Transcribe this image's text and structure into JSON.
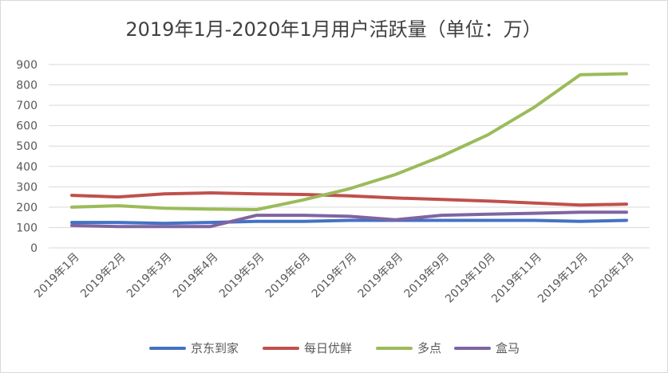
{
  "chart_data": {
    "type": "line",
    "title": "2019年1月-2020年1月用户活跃量（单位：万）",
    "xlabel": "",
    "ylabel": "",
    "categories": [
      "2019年1月",
      "2019年2月",
      "2019年3月",
      "2019年4月",
      "2019年5月",
      "2019年6月",
      "2019年7月",
      "2019年8月",
      "2019年9月",
      "2019年10月",
      "2019年11月",
      "2019年12月",
      "2020年1月"
    ],
    "ylim": [
      0,
      900
    ],
    "yticks": [
      0,
      100,
      200,
      300,
      400,
      500,
      600,
      700,
      800,
      900
    ],
    "grid": true,
    "legend_position": "bottom",
    "series": [
      {
        "name": "京东到家",
        "color": "#4472c4",
        "values": [
          125,
          125,
          120,
          125,
          130,
          130,
          135,
          135,
          135,
          135,
          135,
          130,
          135
        ]
      },
      {
        "name": "每日优鲜",
        "color": "#c0504d",
        "values": [
          258,
          250,
          265,
          270,
          265,
          262,
          255,
          245,
          238,
          230,
          220,
          210,
          215
        ]
      },
      {
        "name": "多点",
        "color": "#9bbb59",
        "values": [
          200,
          207,
          195,
          190,
          188,
          235,
          290,
          360,
          450,
          555,
          690,
          850,
          855
        ]
      },
      {
        "name": "盒马",
        "color": "#8064a2",
        "values": [
          110,
          105,
          105,
          105,
          160,
          160,
          155,
          138,
          160,
          165,
          170,
          175,
          175
        ]
      }
    ]
  }
}
